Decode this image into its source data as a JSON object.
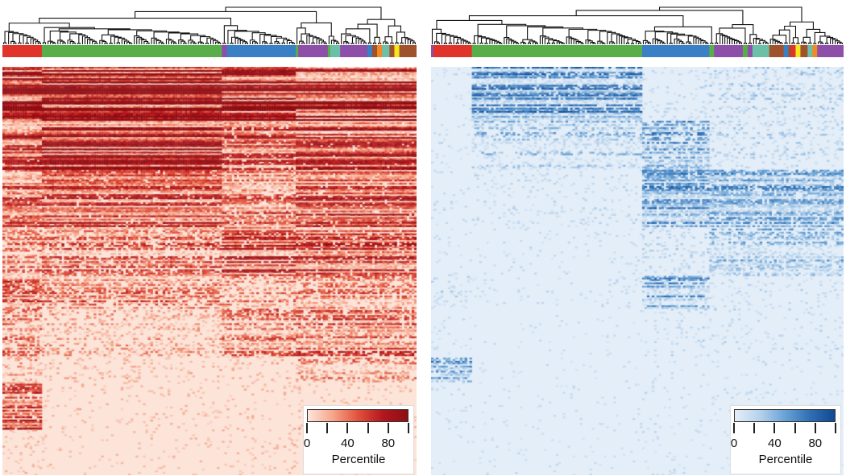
{
  "chart_data": [
    {
      "type": "heatmap",
      "panel": "left",
      "colormap": [
        "#fde6dc",
        "#f6a58a",
        "#e2523c",
        "#b3171e",
        "#8e0d14"
      ],
      "background": "#fce4d9",
      "rows": 250,
      "column_clusters": [
        {
          "color": "#e0342a",
          "n": 16
        },
        {
          "color": "#5aae4a",
          "n": 73
        },
        {
          "color": "#8e4fa8",
          "n": 2
        },
        {
          "color": "#3b7fc4",
          "n": 28
        },
        {
          "color": "#5aae4a",
          "n": 1
        },
        {
          "color": "#8e4fa8",
          "n": 12
        },
        {
          "color": "#5aae4a",
          "n": 1
        },
        {
          "color": "#6cc0a8",
          "n": 4
        },
        {
          "color": "#8e4fa8",
          "n": 11
        },
        {
          "color": "#3b7fc4",
          "n": 2
        },
        {
          "color": "#a0522d",
          "n": 2
        },
        {
          "color": "#f08a24",
          "n": 2
        },
        {
          "color": "#6cc0a8",
          "n": 3
        },
        {
          "color": "#a0522d",
          "n": 2
        },
        {
          "color": "#f5e61e",
          "n": 2
        },
        {
          "color": "#a0522d",
          "n": 7
        }
      ],
      "column_sections": [
        [
          0,
          16
        ],
        [
          16,
          89
        ],
        [
          89,
          119
        ],
        [
          119,
          168
        ]
      ],
      "row_bands": [
        [
          0,
          33
        ],
        [
          33,
          63
        ],
        [
          63,
          98
        ],
        [
          98,
          128
        ],
        [
          128,
          148
        ],
        [
          148,
          178
        ],
        [
          178,
          193
        ],
        [
          193,
          223
        ],
        [
          223,
          250
        ]
      ],
      "mean_percentile": [
        [
          90,
          95,
          85,
          85
        ],
        [
          70,
          80,
          60,
          70
        ],
        [
          60,
          65,
          50,
          65
        ],
        [
          40,
          45,
          65,
          60
        ],
        [
          50,
          40,
          30,
          40
        ],
        [
          40,
          20,
          40,
          50
        ],
        [
          20,
          10,
          10,
          30
        ],
        [
          60,
          8,
          8,
          10
        ],
        [
          10,
          5,
          8,
          5
        ]
      ],
      "colorbar": {
        "ticks": [
          0,
          20,
          40,
          60,
          80,
          100
        ],
        "tick_labels": [
          "0",
          "40",
          "80"
        ],
        "label_values": [
          0,
          40,
          80
        ],
        "label": "Percentile",
        "range": [
          0,
          100
        ]
      }
    },
    {
      "type": "heatmap",
      "panel": "right",
      "colormap": [
        "#e4eef8",
        "#b6d2ec",
        "#6aa3d6",
        "#2f6fb5",
        "#114a92"
      ],
      "background": "#e4eef8",
      "rows": 250,
      "column_clusters": [
        {
          "color": "#8e4fa8",
          "n": 1
        },
        {
          "color": "#e0342a",
          "n": 16
        },
        {
          "color": "#5aae4a",
          "n": 71
        },
        {
          "color": "#3b7fc4",
          "n": 28
        },
        {
          "color": "#5aae4a",
          "n": 2
        },
        {
          "color": "#8e4fa8",
          "n": 12
        },
        {
          "color": "#5aae4a",
          "n": 2
        },
        {
          "color": "#8e4fa8",
          "n": 2
        },
        {
          "color": "#6cc0a8",
          "n": 7
        },
        {
          "color": "#a0522d",
          "n": 6
        },
        {
          "color": "#3b7fc4",
          "n": 2
        },
        {
          "color": "#a0522d",
          "n": 1
        },
        {
          "color": "#e0342a",
          "n": 2
        },
        {
          "color": "#f5e61e",
          "n": 2
        },
        {
          "color": "#a0522d",
          "n": 3
        },
        {
          "color": "#6cc0a8",
          "n": 2
        },
        {
          "color": "#f08a24",
          "n": 2
        },
        {
          "color": "#8e4fa8",
          "n": 11
        }
      ],
      "column_sections": [
        [
          0,
          17
        ],
        [
          17,
          88
        ],
        [
          88,
          116
        ],
        [
          116,
          172
        ]
      ],
      "row_bands": [
        [
          0,
          33
        ],
        [
          33,
          63
        ],
        [
          63,
          98
        ],
        [
          98,
          128
        ],
        [
          128,
          148
        ],
        [
          148,
          178
        ],
        [
          178,
          193
        ],
        [
          193,
          223
        ],
        [
          223,
          250
        ]
      ],
      "mean_percentile": [
        [
          5,
          60,
          10,
          20
        ],
        [
          5,
          30,
          45,
          15
        ],
        [
          5,
          10,
          55,
          50
        ],
        [
          5,
          5,
          15,
          35
        ],
        [
          15,
          5,
          50,
          10
        ],
        [
          5,
          3,
          10,
          10
        ],
        [
          45,
          3,
          5,
          5
        ],
        [
          5,
          3,
          5,
          5
        ],
        [
          3,
          3,
          5,
          3
        ]
      ],
      "colorbar": {
        "ticks": [
          0,
          20,
          40,
          60,
          80,
          100
        ],
        "tick_labels": [
          "0",
          "40",
          "80"
        ],
        "label_values": [
          0,
          40,
          80
        ],
        "label": "Percentile",
        "range": [
          0,
          100
        ]
      }
    }
  ]
}
